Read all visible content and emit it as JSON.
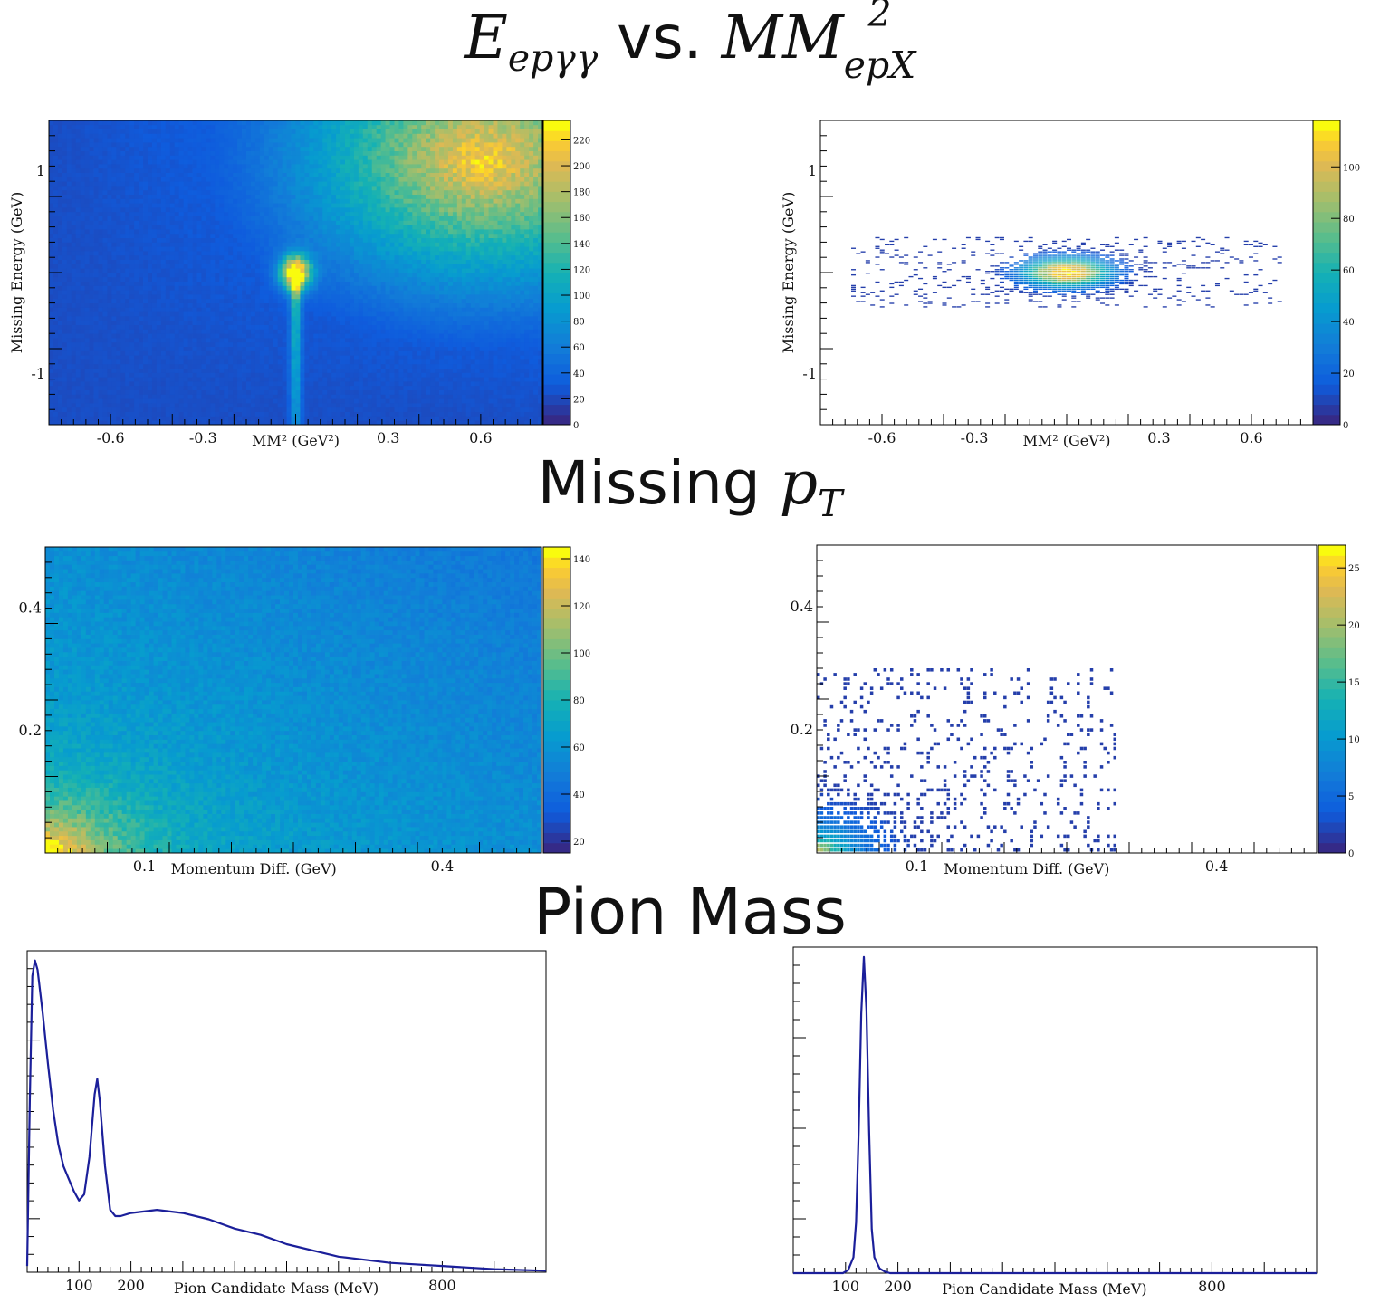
{
  "sections": [
    {
      "main": "E",
      "sub": "epγγ",
      "mid": " vs. ",
      "main2": "MM",
      "sup2": "2",
      "sub2": "epX"
    },
    {
      "text": "Missing ",
      "var": "p",
      "var_sub": "T"
    },
    {
      "text": "Pion Mass"
    }
  ],
  "chart_data": [
    {
      "type": "heatmap",
      "id": "e_vs_mm_before",
      "xlabel": "MM² (GeV²)",
      "ylabel": "Missing Energy (GeV)",
      "xlim": [
        -0.8,
        0.8
      ],
      "ylim": [
        -1.5,
        1.5
      ],
      "xticks": [
        -0.6,
        -0.3,
        0.3,
        0.6
      ],
      "yticks": [
        -1,
        1
      ],
      "colorbar": {
        "min": 0,
        "max": 235,
        "ticks": [
          0,
          20,
          40,
          60,
          80,
          100,
          120,
          140,
          160,
          180,
          200,
          220
        ]
      },
      "features": [
        {
          "kind": "peak",
          "x": 0.0,
          "y": 0.0,
          "sx": 0.035,
          "sy": 0.12,
          "level": 230
        },
        {
          "kind": "band",
          "x": 0.0,
          "y_from": -1.5,
          "y_to": 0.0,
          "width": 0.012,
          "level": 110
        },
        {
          "kind": "background",
          "low": 20,
          "high_corner": [
            0.6,
            1.1
          ],
          "high_level": 205
        }
      ]
    },
    {
      "type": "heatmap",
      "id": "e_vs_mm_after",
      "xlabel": "MM² (GeV²)",
      "ylabel": "Missing Energy (GeV)",
      "xlim": [
        -0.8,
        0.8
      ],
      "ylim": [
        -1.5,
        1.5
      ],
      "xticks": [
        -0.6,
        -0.3,
        0.3,
        0.6
      ],
      "yticks": [
        -1,
        1
      ],
      "colorbar": {
        "min": 0,
        "max": 118,
        "ticks": [
          0,
          20,
          40,
          60,
          80,
          100
        ]
      },
      "region": {
        "x": [
          -0.7,
          0.7
        ],
        "y": [
          -0.35,
          0.35
        ]
      },
      "features": [
        {
          "kind": "peak",
          "x": 0.0,
          "y": 0.0,
          "sx": 0.1,
          "sy": 0.1,
          "level": 118
        }
      ]
    },
    {
      "type": "heatmap",
      "id": "missing_pt_before",
      "xlabel": "Momentum Diff. (GeV)",
      "ylabel": "",
      "xlim": [
        0,
        0.5
      ],
      "ylim": [
        0,
        0.5
      ],
      "xticks": [
        0.1,
        0.4
      ],
      "yticks": [
        0.2,
        0.4
      ],
      "colorbar": {
        "min": 15,
        "max": 145,
        "ticks": [
          20,
          40,
          60,
          80,
          100,
          120,
          140
        ]
      },
      "features": [
        {
          "kind": "corner",
          "x": 0.0,
          "y": 0.0,
          "level": 140,
          "background": 45
        }
      ]
    },
    {
      "type": "heatmap",
      "id": "missing_pt_after",
      "xlabel": "Momentum Diff. (GeV)",
      "ylabel": "",
      "xlim": [
        0,
        0.5
      ],
      "ylim": [
        0,
        0.5
      ],
      "xticks": [
        0.1,
        0.4
      ],
      "yticks": [
        0.2,
        0.4
      ],
      "colorbar": {
        "min": 0,
        "max": 27,
        "ticks": [
          0,
          5,
          10,
          15,
          20,
          25
        ]
      },
      "region": {
        "x": [
          0,
          0.3
        ],
        "y": [
          0,
          0.3
        ]
      },
      "features": [
        {
          "kind": "corner",
          "x": 0.0,
          "y": 0.0,
          "level": 25
        }
      ]
    },
    {
      "type": "line",
      "id": "pion_mass_before",
      "xlabel": "Pion Candidate Mass (MeV)",
      "ylabel": "",
      "xlim": [
        0,
        1000
      ],
      "ylim": [
        0,
        1
      ],
      "xticks": [
        100,
        200,
        800
      ],
      "x": [
        0,
        5,
        10,
        15,
        20,
        30,
        40,
        50,
        60,
        70,
        80,
        90,
        100,
        110,
        120,
        130,
        135,
        140,
        150,
        160,
        170,
        180,
        200,
        250,
        300,
        350,
        400,
        450,
        500,
        600,
        700,
        800,
        900,
        1000
      ],
      "y": [
        0.02,
        0.55,
        0.95,
        1.0,
        0.97,
        0.83,
        0.67,
        0.52,
        0.41,
        0.34,
        0.3,
        0.26,
        0.23,
        0.25,
        0.37,
        0.57,
        0.62,
        0.55,
        0.34,
        0.2,
        0.18,
        0.18,
        0.19,
        0.2,
        0.19,
        0.17,
        0.14,
        0.12,
        0.09,
        0.05,
        0.03,
        0.02,
        0.01,
        0.005
      ]
    },
    {
      "type": "line",
      "id": "pion_mass_after",
      "xlabel": "Pion Candidate Mass (MeV)",
      "ylabel": "",
      "xlim": [
        0,
        1000
      ],
      "ylim": [
        0,
        1
      ],
      "xticks": [
        100,
        200,
        800
      ],
      "x": [
        0,
        80,
        95,
        105,
        115,
        120,
        125,
        130,
        135,
        140,
        145,
        150,
        155,
        165,
        175,
        185,
        200,
        1000
      ],
      "y": [
        0,
        0,
        0.0,
        0.01,
        0.05,
        0.16,
        0.45,
        0.82,
        1.0,
        0.83,
        0.45,
        0.14,
        0.05,
        0.015,
        0.005,
        0,
        0,
        0
      ]
    }
  ]
}
